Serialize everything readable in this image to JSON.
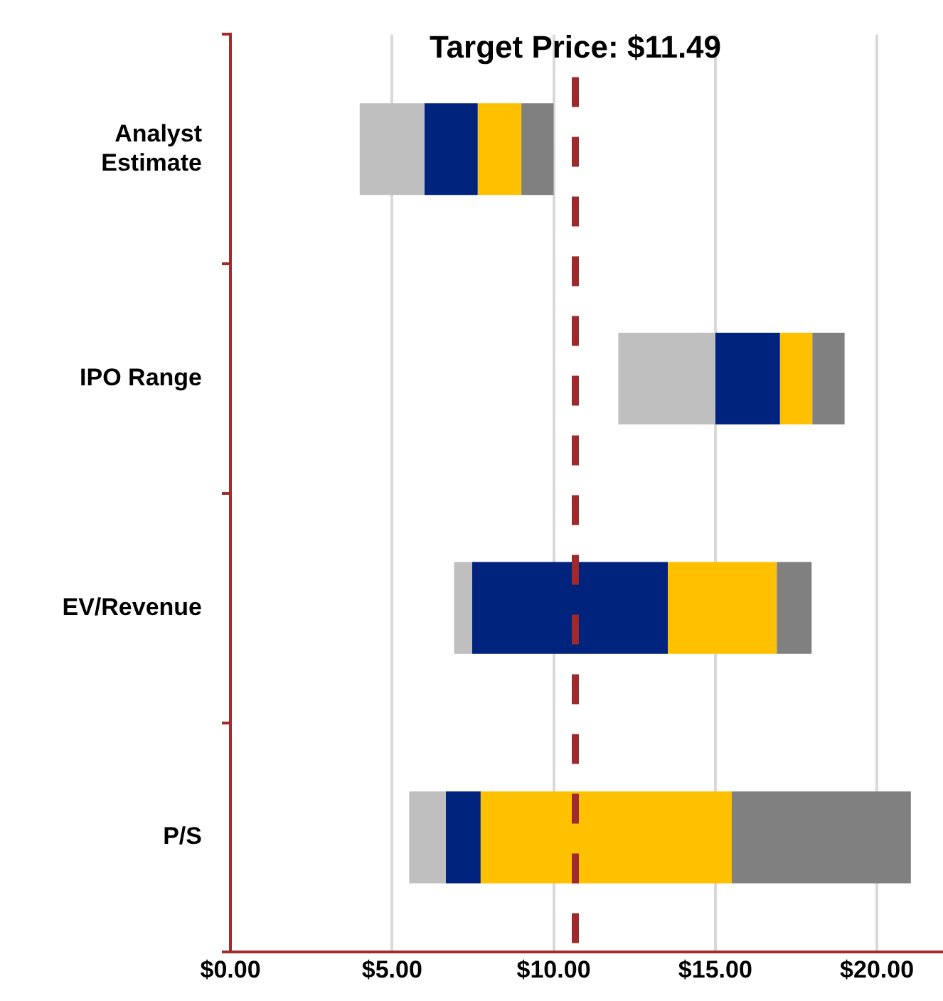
{
  "chart_data": {
    "type": "bar",
    "orientation": "horizontal",
    "title": "Target Price: $11.49",
    "categories": [
      "Analyst Estimate",
      "IPO Range",
      "EV/Revenue",
      "P/S"
    ],
    "series": [
      {
        "color": "#bfbfbf",
        "base": [
          4.0,
          12.0,
          6.92,
          5.53
        ],
        "values": [
          2.0,
          3.0,
          0.56,
          1.13
        ]
      },
      {
        "color": "#00237d",
        "base": [
          6.0,
          15.0,
          7.48,
          6.66
        ],
        "values": [
          1.65,
          2.0,
          6.05,
          1.08
        ]
      },
      {
        "color": "#ffc000",
        "base": [
          7.65,
          17.0,
          13.53,
          7.74
        ],
        "values": [
          1.35,
          1.0,
          3.37,
          7.77
        ]
      },
      {
        "color": "#808080",
        "base": [
          9.0,
          18.0,
          16.9,
          15.51
        ],
        "values": [
          1.0,
          1.0,
          1.08,
          5.54
        ]
      }
    ],
    "xlim": [
      0,
      22
    ],
    "xticks": [
      {
        "value": 0,
        "label": "$0.00"
      },
      {
        "value": 5,
        "label": "$5.00"
      },
      {
        "value": 10,
        "label": "$10.00"
      },
      {
        "value": 15,
        "label": "$15.00"
      },
      {
        "value": 20,
        "label": "$20.00"
      }
    ],
    "ref_lines": [
      {
        "axis": "x",
        "value": 10.67,
        "color": "#9e2a2b",
        "line_style": "dashed"
      }
    ],
    "grid": "x",
    "legend": false
  }
}
